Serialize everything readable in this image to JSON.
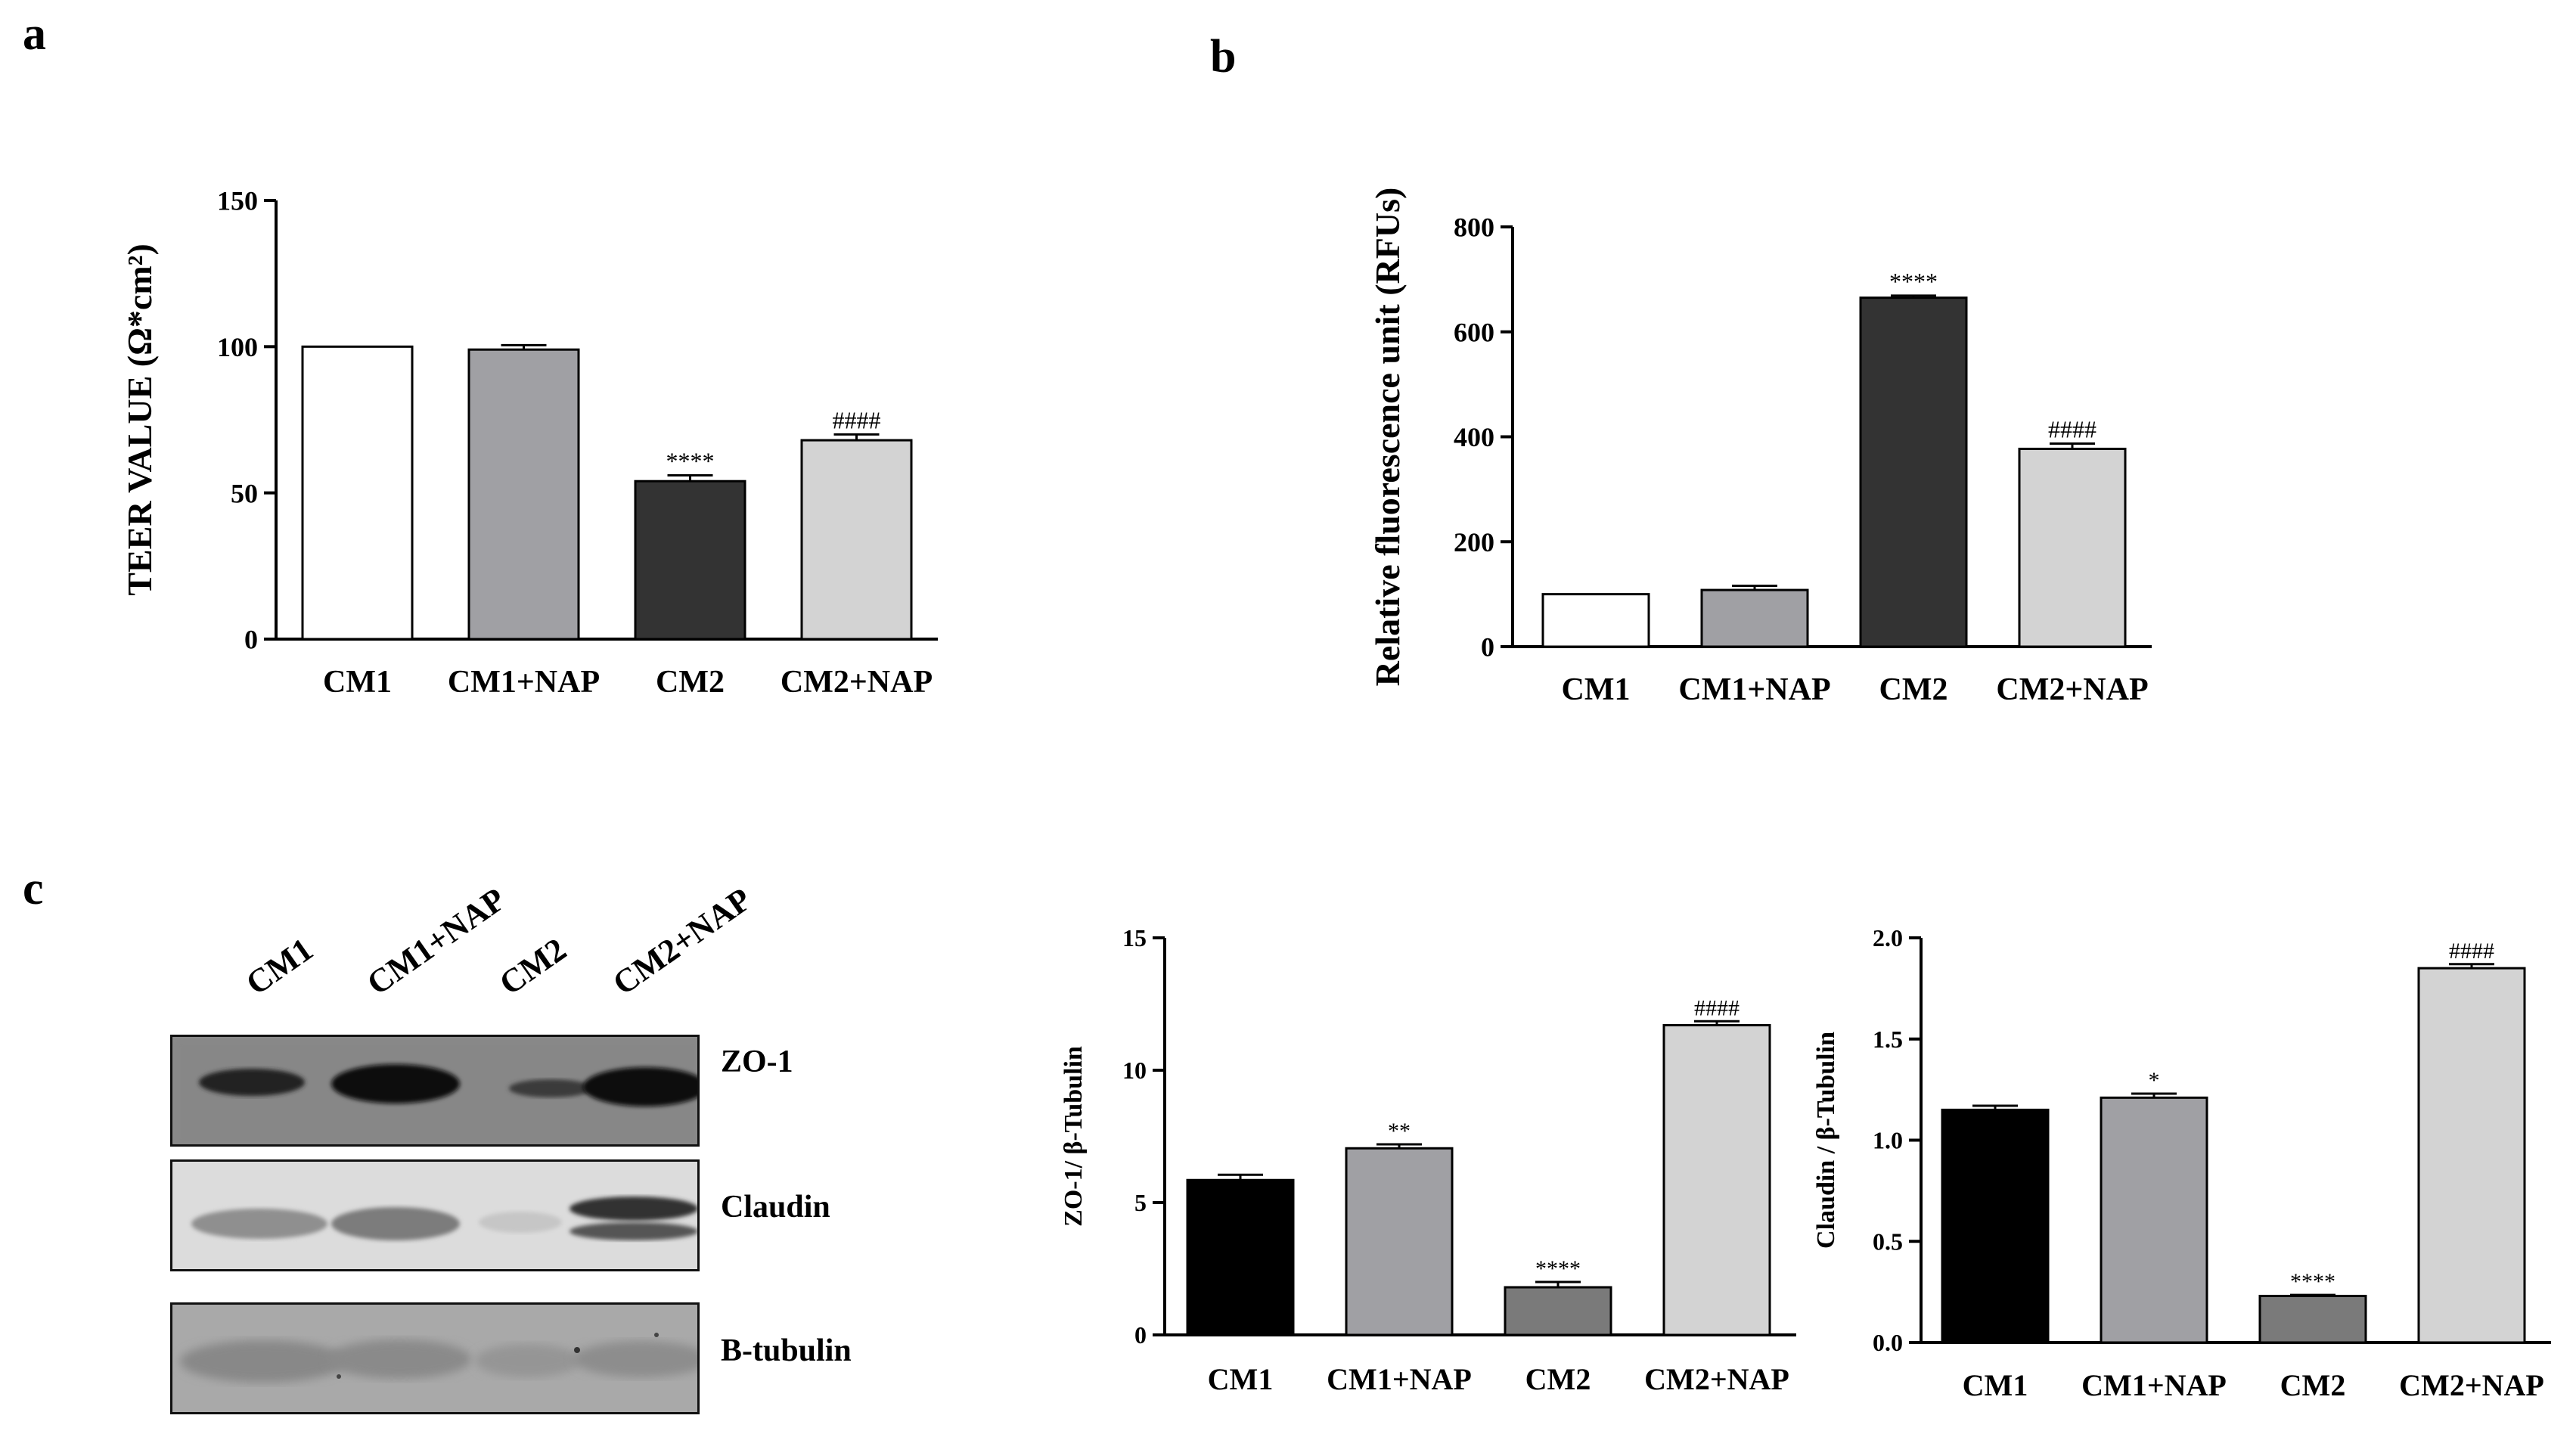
{
  "panels": {
    "a": "a",
    "b": "b",
    "c": "c"
  },
  "chart_data": [
    {
      "id": "a",
      "type": "bar",
      "ylabel": "TEER VALUE (Ω*cm²)",
      "categories": [
        "CM1",
        "CM1+NAP",
        "CM2",
        "CM2+NAP"
      ],
      "values": [
        100,
        99,
        54,
        68
      ],
      "errors": [
        0,
        1.5,
        2,
        2
      ],
      "colors": [
        "#ffffff",
        "#a0a0a4",
        "#333333",
        "#d3d3d3"
      ],
      "annotations": [
        "",
        "",
        "****",
        "####"
      ],
      "ylim": [
        0,
        150
      ],
      "yticks": [
        0,
        50,
        100,
        150
      ],
      "font": "serif"
    },
    {
      "id": "b",
      "type": "bar",
      "ylabel": "Relative fluorescence unit (RFUs)",
      "categories": [
        "CM1",
        "CM1+NAP",
        "CM2",
        "CM2+NAP"
      ],
      "values": [
        100,
        108,
        665,
        377
      ],
      "errors": [
        0,
        8,
        4,
        10
      ],
      "colors": [
        "#ffffff",
        "#a0a0a4",
        "#333333",
        "#d3d3d3"
      ],
      "annotations": [
        "",
        "",
        "****",
        "####"
      ],
      "ylim": [
        0,
        800
      ],
      "yticks": [
        0,
        200,
        400,
        600,
        800
      ],
      "font": "serif"
    },
    {
      "id": "c1",
      "type": "bar",
      "ylabel": "ZO-1/ β-Tubulin",
      "categories": [
        "CM1",
        "CM1+NAP",
        "CM2",
        "CM2+NAP"
      ],
      "values": [
        5.85,
        7.05,
        1.8,
        11.7
      ],
      "errors": [
        0.2,
        0.15,
        0.2,
        0.15
      ],
      "colors": [
        "#000000",
        "#a0a0a4",
        "#7a7a7a",
        "#d3d3d3"
      ],
      "annotations": [
        "",
        "**",
        "****",
        "####"
      ],
      "ylim": [
        0,
        15
      ],
      "yticks": [
        0,
        5,
        10,
        15
      ],
      "font": "sans"
    },
    {
      "id": "c2",
      "type": "bar",
      "ylabel": "Claudin / β-Tubulin",
      "categories": [
        "CM1",
        "CM1+NAP",
        "CM2",
        "CM2+NAP"
      ],
      "values": [
        1.15,
        1.21,
        0.23,
        1.85
      ],
      "errors": [
        0.02,
        0.02,
        0.005,
        0.02
      ],
      "colors": [
        "#000000",
        "#a0a0a4",
        "#7a7a7a",
        "#d3d3d3"
      ],
      "annotations": [
        "",
        "*",
        "****",
        "####"
      ],
      "ylim": [
        0,
        2.0
      ],
      "yticks": [
        "0.0",
        "0.5",
        "1.0",
        "1.5",
        "2.0"
      ],
      "font": "sans"
    }
  ],
  "blot": {
    "lanes": [
      "CM1",
      "CM1+NAP",
      "CM2",
      "CM2+NAP"
    ],
    "rows": [
      "ZO-1",
      "Claudin",
      "B-tubulin"
    ]
  }
}
